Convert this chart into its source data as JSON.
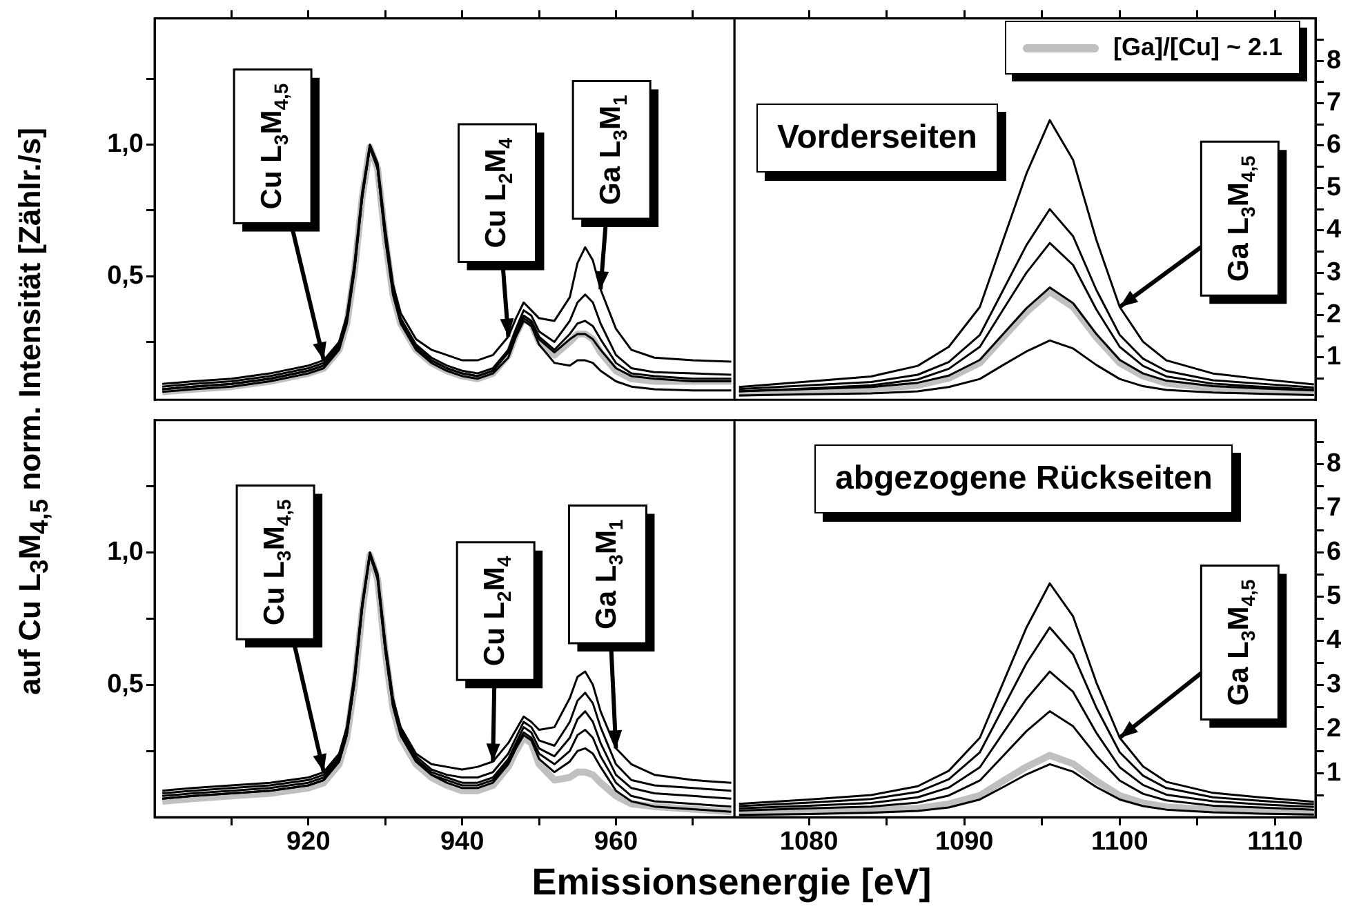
{
  "chart_data": [
    {
      "type": "line",
      "ylabel": "auf Cu L$_{3}$M$_{4,5}$ norm. Intensität [Zählr./s]",
      "tick_labels": "y",
      "xlim": [
        900,
        975.4
      ],
      "ylim": [
        0.03,
        1.48
      ],
      "xticks": [
        {
          "value": 910,
          "label": null
        },
        920,
        {
          "value": 930,
          "label": null
        },
        940,
        {
          "value": 950,
          "label": null
        },
        960,
        {
          "value": 970,
          "label": null
        }
      ],
      "yticks": [
        {
          "value": 0.25,
          "label": null
        },
        {
          "value": 0.5,
          "label": "0,5"
        },
        {
          "value": 0.75,
          "label": null
        },
        {
          "value": 1,
          "label": "1,0"
        },
        {
          "value": 1.25,
          "label": null
        }
      ],
      "x": [
        901,
        905,
        910,
        915,
        920,
        922,
        924,
        925,
        926,
        927,
        928,
        929,
        930,
        931,
        932,
        934,
        936,
        938,
        940,
        942,
        944,
        946,
        947,
        948,
        949,
        950,
        952,
        954,
        955,
        956,
        957,
        958,
        960,
        962,
        965,
        970,
        975
      ],
      "series": [
        {
          "color": "#c0c0c0",
          "values": [
            0.06,
            0.07,
            0.08,
            0.1,
            0.13,
            0.15,
            0.22,
            0.32,
            0.52,
            0.8,
            0.99,
            0.91,
            0.64,
            0.43,
            0.32,
            0.22,
            0.17,
            0.14,
            0.12,
            0.11,
            0.13,
            0.2,
            0.28,
            0.34,
            0.32,
            0.25,
            0.2,
            0.25,
            0.28,
            0.28,
            0.26,
            0.21,
            0.14,
            0.11,
            0.1,
            0.1,
            0.1
          ]
        },
        {
          "color": "#000000",
          "values": [
            0.09,
            0.1,
            0.11,
            0.13,
            0.16,
            0.18,
            0.25,
            0.35,
            0.55,
            0.82,
            1.0,
            0.93,
            0.68,
            0.47,
            0.36,
            0.26,
            0.22,
            0.2,
            0.18,
            0.18,
            0.2,
            0.27,
            0.34,
            0.4,
            0.37,
            0.34,
            0.33,
            0.42,
            0.55,
            0.61,
            0.56,
            0.45,
            0.3,
            0.22,
            0.19,
            0.18,
            0.175
          ]
        },
        {
          "color": "#000000",
          "values": [
            0.08,
            0.09,
            0.1,
            0.12,
            0.15,
            0.17,
            0.24,
            0.34,
            0.54,
            0.81,
            0.99,
            0.92,
            0.66,
            0.45,
            0.34,
            0.24,
            0.19,
            0.16,
            0.14,
            0.13,
            0.15,
            0.22,
            0.3,
            0.37,
            0.35,
            0.29,
            0.25,
            0.33,
            0.4,
            0.43,
            0.4,
            0.32,
            0.2,
            0.15,
            0.135,
            0.13,
            0.125
          ]
        },
        {
          "color": "#000000",
          "values": [
            0.07,
            0.08,
            0.09,
            0.11,
            0.14,
            0.16,
            0.23,
            0.33,
            0.53,
            0.8,
            0.99,
            0.91,
            0.65,
            0.44,
            0.33,
            0.23,
            0.18,
            0.15,
            0.13,
            0.12,
            0.14,
            0.21,
            0.29,
            0.35,
            0.33,
            0.27,
            0.22,
            0.28,
            0.32,
            0.33,
            0.31,
            0.26,
            0.17,
            0.13,
            0.12,
            0.11,
            0.11
          ]
        },
        {
          "color": "#000000",
          "values": [
            0.07,
            0.08,
            0.09,
            0.11,
            0.14,
            0.16,
            0.23,
            0.33,
            0.53,
            0.8,
            0.99,
            0.91,
            0.65,
            0.44,
            0.33,
            0.23,
            0.18,
            0.15,
            0.13,
            0.12,
            0.14,
            0.21,
            0.28,
            0.34,
            0.32,
            0.26,
            0.21,
            0.26,
            0.28,
            0.28,
            0.26,
            0.22,
            0.15,
            0.12,
            0.11,
            0.1,
            0.1
          ]
        },
        {
          "color": "#000000",
          "values": [
            0.06,
            0.07,
            0.08,
            0.1,
            0.13,
            0.15,
            0.22,
            0.32,
            0.52,
            0.8,
            1.0,
            0.91,
            0.64,
            0.43,
            0.32,
            0.22,
            0.17,
            0.14,
            0.12,
            0.11,
            0.13,
            0.19,
            0.27,
            0.33,
            0.31,
            0.24,
            0.17,
            0.16,
            0.18,
            0.18,
            0.17,
            0.14,
            0.1,
            0.08,
            0.07,
            0.065,
            0.065
          ]
        }
      ],
      "annotations": [
        {
          "text": "Cu L$_{3}$M$_{4,5}$",
          "x": 922,
          "y": 0.18
        },
        {
          "text": "Cu L$_{2}$M$_{4}$",
          "x": 946,
          "y": 0.27
        },
        {
          "text": "Ga L$_{3}$M$_{1}$",
          "x": 958,
          "y": 0.45
        }
      ]
    },
    {
      "type": "line",
      "title": "Vorderseiten",
      "legend": "top right",
      "tick_labels": "y",
      "xlim": [
        1075.2,
        1112.6
      ],
      "ylim": [
        0,
        9
      ],
      "xticks": [
        1080,
        {
          "value": 1085,
          "label": null
        },
        1090,
        {
          "value": 1095,
          "label": null
        },
        1100,
        {
          "value": 1105,
          "label": null
        },
        1110
      ],
      "yticks": [
        {
          "value": 0.5,
          "label": null
        },
        1,
        {
          "value": 1.5,
          "label": null
        },
        2,
        {
          "value": 2.5,
          "label": null
        },
        3,
        {
          "value": 3.5,
          "label": null
        },
        4,
        {
          "value": 4.5,
          "label": null
        },
        5,
        {
          "value": 5.5,
          "label": null
        },
        6,
        {
          "value": 6.5,
          "label": null
        },
        7,
        {
          "value": 7.5,
          "label": null
        },
        8,
        {
          "value": 8.5,
          "label": null
        }
      ],
      "x": [
        1075.5,
        1080,
        1084,
        1087,
        1089,
        1091,
        1092.5,
        1094,
        1095.5,
        1097,
        1098.5,
        1100,
        1101.5,
        1103,
        1106,
        1109,
        1112.5
      ],
      "series": [
        {
          "name": "[Ga]/[Cu] ~ 2.1",
          "color": "#c0c0c0",
          "values": [
            0.15,
            0.2,
            0.25,
            0.34,
            0.51,
            0.87,
            1.47,
            2.07,
            2.55,
            2.19,
            1.47,
            0.87,
            0.56,
            0.39,
            0.27,
            0.22,
            0.17
          ]
        },
        {
          "color": "#000000",
          "values": [
            0.3,
            0.43,
            0.55,
            0.8,
            1.25,
            2.19,
            3.77,
            5.34,
            6.6,
            5.66,
            3.77,
            2.19,
            1.37,
            0.93,
            0.62,
            0.49,
            0.36
          ]
        },
        {
          "color": "#000000",
          "values": [
            0.25,
            0.34,
            0.42,
            0.59,
            0.89,
            1.53,
            2.59,
            3.65,
            4.5,
            3.86,
            2.59,
            1.53,
            0.97,
            0.68,
            0.46,
            0.38,
            0.29
          ]
        },
        {
          "color": "#000000",
          "values": [
            0.2,
            0.27,
            0.34,
            0.48,
            0.73,
            1.25,
            2.13,
            3.0,
            3.7,
            3.18,
            2.13,
            1.25,
            0.8,
            0.55,
            0.38,
            0.31,
            0.24
          ]
        },
        {
          "color": "#000000",
          "values": [
            0.2,
            0.25,
            0.3,
            0.4,
            0.57,
            0.94,
            1.55,
            2.16,
            2.65,
            2.28,
            1.55,
            0.94,
            0.62,
            0.45,
            0.32,
            0.27,
            0.22
          ]
        },
        {
          "color": "#000000",
          "values": [
            0.1,
            0.13,
            0.15,
            0.2,
            0.3,
            0.49,
            0.82,
            1.14,
            1.4,
            1.21,
            0.82,
            0.49,
            0.32,
            0.23,
            0.17,
            0.14,
            0.11
          ]
        }
      ],
      "annotations": [
        {
          "text": "Ga L$_{3}$M$_{4,5}$",
          "x": 1100,
          "y": 2.19
        }
      ]
    },
    {
      "type": "line",
      "xlabel": "Emissionsenergie [eV]",
      "xlim": [
        900,
        975.4
      ],
      "ylim": [
        0,
        1.5
      ],
      "xticks": [
        {
          "value": 910,
          "label": null
        },
        920,
        {
          "value": 930,
          "label": null
        },
        940,
        {
          "value": 950,
          "label": null
        },
        960,
        {
          "value": 970,
          "label": null
        }
      ],
      "yticks": [
        {
          "value": 0.25,
          "label": null
        },
        {
          "value": 0.5,
          "label": "0,5"
        },
        {
          "value": 0.75,
          "label": null
        },
        {
          "value": 1,
          "label": "1,0"
        },
        {
          "value": 1.25,
          "label": null
        }
      ],
      "x": [
        901,
        905,
        910,
        915,
        920,
        922,
        924,
        925,
        926,
        927,
        928,
        929,
        930,
        931,
        932,
        934,
        936,
        938,
        940,
        942,
        944,
        946,
        947,
        948,
        949,
        950,
        952,
        954,
        955,
        956,
        957,
        958,
        960,
        962,
        965,
        970,
        975
      ],
      "series": [
        {
          "color": "#c0c0c0",
          "values": [
            0.06,
            0.07,
            0.08,
            0.09,
            0.11,
            0.13,
            0.2,
            0.3,
            0.5,
            0.78,
            0.99,
            0.9,
            0.62,
            0.41,
            0.3,
            0.2,
            0.15,
            0.12,
            0.1,
            0.1,
            0.12,
            0.19,
            0.25,
            0.3,
            0.28,
            0.2,
            0.14,
            0.15,
            0.17,
            0.17,
            0.16,
            0.13,
            0.08,
            0.05,
            0.04,
            0.03,
            0.02
          ]
        },
        {
          "color": "#000000",
          "values": [
            0.1,
            0.11,
            0.12,
            0.13,
            0.15,
            0.17,
            0.24,
            0.34,
            0.54,
            0.81,
            1.0,
            0.92,
            0.66,
            0.45,
            0.34,
            0.24,
            0.2,
            0.19,
            0.18,
            0.19,
            0.21,
            0.28,
            0.33,
            0.38,
            0.36,
            0.33,
            0.34,
            0.45,
            0.53,
            0.55,
            0.5,
            0.4,
            0.26,
            0.2,
            0.16,
            0.14,
            0.13
          ]
        },
        {
          "color": "#000000",
          "values": [
            0.09,
            0.1,
            0.11,
            0.12,
            0.14,
            0.16,
            0.23,
            0.33,
            0.53,
            0.8,
            0.99,
            0.91,
            0.65,
            0.44,
            0.33,
            0.23,
            0.18,
            0.16,
            0.15,
            0.15,
            0.17,
            0.24,
            0.3,
            0.36,
            0.34,
            0.29,
            0.27,
            0.36,
            0.44,
            0.47,
            0.43,
            0.34,
            0.2,
            0.14,
            0.12,
            0.11,
            0.1
          ]
        },
        {
          "color": "#000000",
          "values": [
            0.08,
            0.09,
            0.1,
            0.11,
            0.13,
            0.15,
            0.22,
            0.32,
            0.52,
            0.8,
            0.99,
            0.91,
            0.64,
            0.43,
            0.32,
            0.22,
            0.17,
            0.15,
            0.13,
            0.13,
            0.15,
            0.22,
            0.28,
            0.34,
            0.32,
            0.26,
            0.23,
            0.3,
            0.37,
            0.4,
            0.36,
            0.28,
            0.16,
            0.11,
            0.09,
            0.08,
            0.07
          ]
        },
        {
          "color": "#000000",
          "values": [
            0.07,
            0.08,
            0.09,
            0.1,
            0.12,
            0.14,
            0.21,
            0.31,
            0.51,
            0.79,
            0.99,
            0.9,
            0.63,
            0.42,
            0.31,
            0.21,
            0.16,
            0.14,
            0.12,
            0.12,
            0.14,
            0.21,
            0.27,
            0.32,
            0.3,
            0.24,
            0.2,
            0.25,
            0.31,
            0.33,
            0.3,
            0.23,
            0.13,
            0.08,
            0.06,
            0.05,
            0.04
          ]
        },
        {
          "color": "#000000",
          "values": [
            0.07,
            0.08,
            0.09,
            0.1,
            0.12,
            0.14,
            0.21,
            0.31,
            0.51,
            0.79,
            1.0,
            0.9,
            0.63,
            0.42,
            0.31,
            0.21,
            0.16,
            0.13,
            0.11,
            0.11,
            0.13,
            0.2,
            0.26,
            0.31,
            0.29,
            0.22,
            0.17,
            0.21,
            0.25,
            0.26,
            0.24,
            0.19,
            0.1,
            0.06,
            0.04,
            0.03,
            0.02
          ]
        }
      ],
      "annotations": [
        {
          "text": "Cu L$_{3}$M$_{4,5}$",
          "x": 922,
          "y": 0.17
        },
        {
          "text": "Cu L$_{2}$M$_{4}$",
          "x": 944,
          "y": 0.21
        },
        {
          "text": "Ga L$_{3}$M$_{1}$",
          "x": 960,
          "y": 0.26
        }
      ]
    },
    {
      "type": "line",
      "title": "abgezogene Rückseiten",
      "xlim": [
        1075.2,
        1112.6
      ],
      "ylim": [
        0,
        9
      ],
      "xticks": [
        1080,
        {
          "value": 1085,
          "label": null
        },
        1090,
        {
          "value": 1095,
          "label": null
        },
        1100,
        {
          "value": 1105,
          "label": null
        },
        1110
      ],
      "yticks": [
        {
          "value": 0.5,
          "label": null
        },
        1,
        {
          "value": 1.5,
          "label": null
        },
        2,
        {
          "value": 2.5,
          "label": null
        },
        3,
        {
          "value": 3.5,
          "label": null
        },
        4,
        {
          "value": 4.5,
          "label": null
        },
        5,
        {
          "value": 5.5,
          "label": null
        },
        6,
        {
          "value": 6.5,
          "label": null
        },
        7,
        {
          "value": 7.5,
          "label": null
        },
        8,
        {
          "value": 8.5,
          "label": null
        }
      ],
      "x": [
        1075.5,
        1080,
        1084,
        1087,
        1089,
        1091,
        1092.5,
        1094,
        1095.5,
        1097,
        1098.5,
        1100,
        1101.5,
        1103,
        1106,
        1109,
        1112.5
      ],
      "series": [
        {
          "color": "#c0c0c0",
          "values": [
            0.1,
            0.13,
            0.15,
            0.2,
            0.3,
            0.49,
            0.82,
            1.14,
            1.4,
            1.21,
            0.82,
            0.49,
            0.32,
            0.23,
            0.17,
            0.14,
            0.11
          ]
        },
        {
          "color": "#000000",
          "values": [
            0.3,
            0.4,
            0.5,
            0.7,
            1.05,
            1.8,
            3.05,
            4.3,
            5.3,
            4.55,
            3.05,
            1.8,
            1.15,
            0.8,
            0.55,
            0.45,
            0.35
          ]
        },
        {
          "color": "#000000",
          "values": [
            0.25,
            0.33,
            0.41,
            0.57,
            0.86,
            1.47,
            2.48,
            3.49,
            4.3,
            3.69,
            2.48,
            1.47,
            0.94,
            0.66,
            0.45,
            0.37,
            0.29
          ]
        },
        {
          "color": "#000000",
          "values": [
            0.2,
            0.26,
            0.32,
            0.45,
            0.67,
            1.13,
            1.91,
            2.68,
            3.3,
            2.84,
            1.91,
            1.13,
            0.73,
            0.51,
            0.36,
            0.29,
            0.23
          ]
        },
        {
          "color": "#000000",
          "values": [
            0.15,
            0.2,
            0.24,
            0.33,
            0.49,
            0.83,
            1.39,
            1.95,
            2.4,
            2.06,
            1.39,
            0.83,
            0.53,
            0.38,
            0.26,
            0.22,
            0.17
          ]
        },
        {
          "color": "#000000",
          "values": [
            0.05,
            0.07,
            0.1,
            0.14,
            0.22,
            0.4,
            0.68,
            0.97,
            1.2,
            1.03,
            0.68,
            0.4,
            0.25,
            0.17,
            0.11,
            0.08,
            0.06
          ]
        }
      ],
      "annotations": [
        {
          "text": "Ga L$_{3}$M$_{4,5}$",
          "x": 1100,
          "y": 1.8
        }
      ]
    }
  ]
}
